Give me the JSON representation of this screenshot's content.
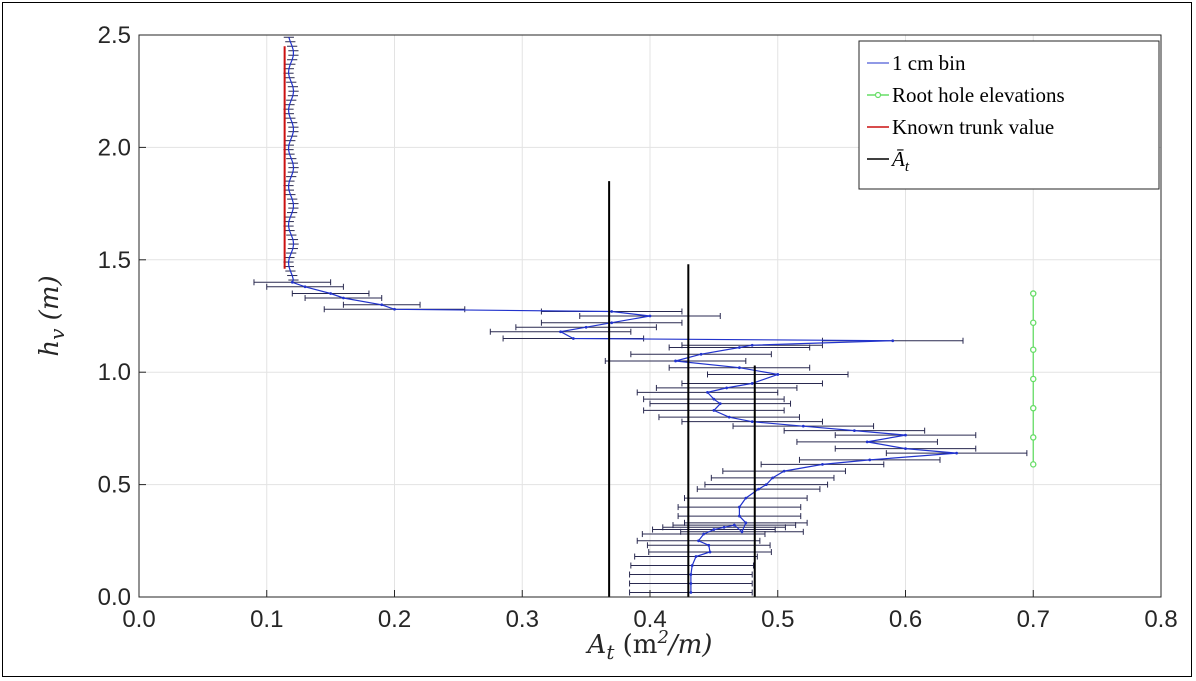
{
  "chart_data": {
    "type": "line",
    "xlabel": "A_t (m^2/m)",
    "ylabel": "h_v (m)",
    "xlim": [
      0.0,
      0.8
    ],
    "ylim": [
      0.0,
      2.5
    ],
    "xticks": [
      "0.0",
      "0.1",
      "0.2",
      "0.3",
      "0.4",
      "0.5",
      "0.6",
      "0.7",
      "0.8"
    ],
    "yticks": [
      "0.0",
      "0.5",
      "1.0",
      "1.5",
      "2.0",
      "2.5"
    ],
    "grid": true,
    "legend_position": "top-right",
    "legend": [
      "1 cm bin",
      "Root hole elevations",
      "Known trunk value",
      "Ā_t"
    ],
    "colors": {
      "bin": "#2233cc",
      "root": "#66dd66",
      "trunk": "#cc1111",
      "mean": "#000000",
      "errorbar": "#2a2a50"
    },
    "series": [
      {
        "name": "1 cm bin",
        "points": [
          [
            0.432,
            0.02
          ],
          [
            0.432,
            0.06
          ],
          [
            0.432,
            0.1
          ],
          [
            0.433,
            0.14
          ],
          [
            0.436,
            0.18
          ],
          [
            0.447,
            0.2
          ],
          [
            0.446,
            0.23
          ],
          [
            0.438,
            0.25
          ],
          [
            0.442,
            0.28
          ],
          [
            0.45,
            0.3
          ],
          [
            0.458,
            0.31
          ],
          [
            0.466,
            0.32
          ],
          [
            0.472,
            0.29
          ],
          [
            0.475,
            0.33
          ],
          [
            0.47,
            0.36
          ],
          [
            0.47,
            0.4
          ],
          [
            0.475,
            0.44
          ],
          [
            0.485,
            0.48
          ],
          [
            0.491,
            0.5
          ],
          [
            0.496,
            0.53
          ],
          [
            0.505,
            0.56
          ],
          [
            0.535,
            0.59
          ],
          [
            0.572,
            0.61
          ],
          [
            0.64,
            0.64
          ],
          [
            0.6,
            0.66
          ],
          [
            0.57,
            0.69
          ],
          [
            0.6,
            0.72
          ],
          [
            0.56,
            0.74
          ],
          [
            0.52,
            0.76
          ],
          [
            0.48,
            0.78
          ],
          [
            0.462,
            0.8
          ],
          [
            0.45,
            0.83
          ],
          [
            0.455,
            0.86
          ],
          [
            0.45,
            0.88
          ],
          [
            0.445,
            0.91
          ],
          [
            0.46,
            0.93
          ],
          [
            0.48,
            0.95
          ],
          [
            0.5,
            0.99
          ],
          [
            0.47,
            1.02
          ],
          [
            0.42,
            1.05
          ],
          [
            0.44,
            1.08
          ],
          [
            0.47,
            1.11
          ],
          [
            0.48,
            1.12
          ],
          [
            0.59,
            1.14
          ],
          [
            0.34,
            1.15
          ],
          [
            0.33,
            1.18
          ],
          [
            0.35,
            1.2
          ],
          [
            0.37,
            1.22
          ],
          [
            0.4,
            1.25
          ],
          [
            0.37,
            1.27
          ],
          [
            0.2,
            1.28
          ],
          [
            0.19,
            1.3
          ],
          [
            0.16,
            1.33
          ],
          [
            0.15,
            1.35
          ],
          [
            0.13,
            1.38
          ],
          [
            0.12,
            1.4
          ]
        ]
      },
      {
        "name": "Root hole elevations",
        "x": 0.7,
        "y": [
          0.59,
          0.71,
          0.84,
          0.97,
          1.1,
          1.22,
          1.35
        ]
      },
      {
        "name": "Known trunk value",
        "x": 0.114,
        "ylim": [
          1.46,
          2.45
        ]
      },
      {
        "name": "Ā_t",
        "lines": [
          {
            "x": 0.368,
            "y": [
              0.0,
              1.85
            ]
          },
          {
            "x": 0.43,
            "y": [
              0.0,
              1.48
            ]
          },
          {
            "x": 0.482,
            "y": [
              0.0,
              1.03
            ]
          }
        ]
      }
    ]
  }
}
